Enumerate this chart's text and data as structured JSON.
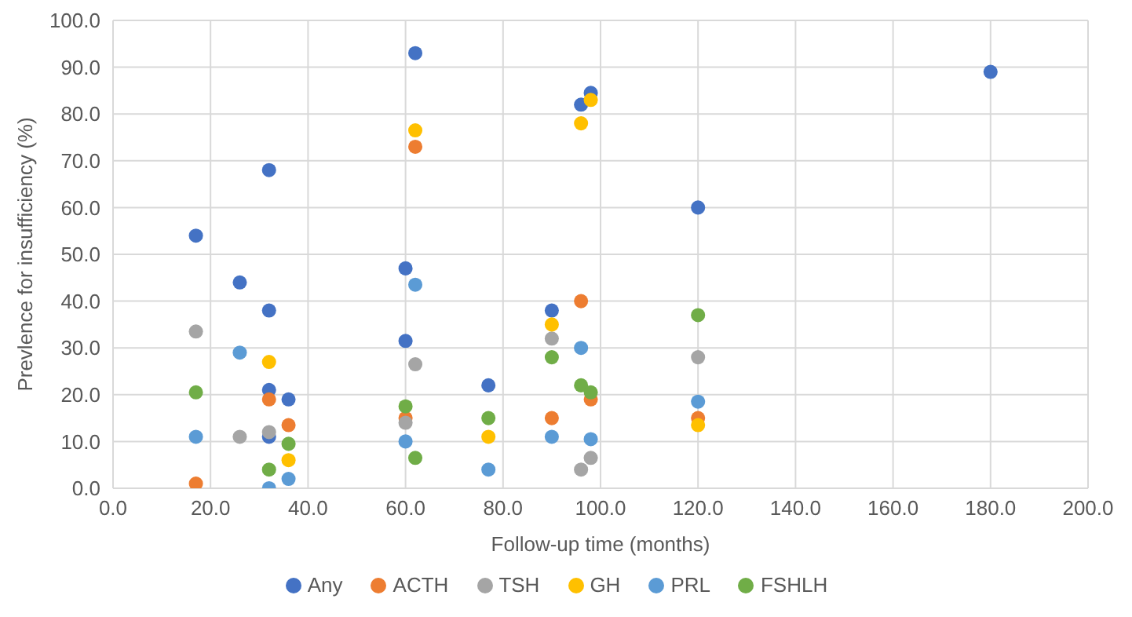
{
  "chart_data": {
    "type": "scatter",
    "xlabel": "Follow-up time (months)",
    "ylabel": "Prevlence for insufficiency (%)",
    "xlim": [
      0,
      200
    ],
    "xticks": [
      {
        "value": 0,
        "label": "0.0"
      },
      {
        "value": 20,
        "label": "20.0"
      },
      {
        "value": 40,
        "label": "40.0"
      },
      {
        "value": 60,
        "label": "60.0"
      },
      {
        "value": 80,
        "label": "80.0"
      },
      {
        "value": 100,
        "label": "100.0"
      },
      {
        "value": 120,
        "label": "120.0"
      },
      {
        "value": 140,
        "label": "140.0"
      },
      {
        "value": 160,
        "label": "160.0"
      },
      {
        "value": 180,
        "label": "180.0"
      },
      {
        "value": 200,
        "label": "200.0"
      }
    ],
    "ylim": [
      0,
      100
    ],
    "yticks": [
      {
        "value": 0,
        "label": "0.0"
      },
      {
        "value": 10,
        "label": "10.0"
      },
      {
        "value": 20,
        "label": "20.0"
      },
      {
        "value": 30,
        "label": "30.0"
      },
      {
        "value": 40,
        "label": "40.0"
      },
      {
        "value": 50,
        "label": "50.0"
      },
      {
        "value": 60,
        "label": "60.0"
      },
      {
        "value": 70,
        "label": "70.0"
      },
      {
        "value": 80,
        "label": "80.0"
      },
      {
        "value": 90,
        "label": "90.0"
      },
      {
        "value": 100,
        "label": "100.0"
      }
    ],
    "grid": true,
    "legend": "bottom",
    "marker": "circle",
    "series": [
      {
        "name": "Any",
        "color": "#4472c4",
        "x": [
          17,
          26,
          32,
          32,
          32,
          32,
          36,
          60,
          60,
          62,
          77,
          90,
          96,
          98,
          120,
          180
        ],
        "values": [
          54,
          44,
          68,
          38,
          21,
          11,
          19,
          47,
          31.5,
          93,
          22,
          38,
          82,
          84.5,
          60,
          89
        ]
      },
      {
        "name": "ACTH",
        "color": "#ed7d31",
        "x": [
          17,
          32,
          36,
          60,
          62,
          90,
          96,
          98,
          120
        ],
        "values": [
          1,
          19,
          13.5,
          15,
          73,
          15,
          40,
          19,
          15
        ]
      },
      {
        "name": "TSH",
        "color": "#a5a5a5",
        "x": [
          17,
          26,
          32,
          60,
          62,
          90,
          96,
          98,
          120
        ],
        "values": [
          33.5,
          11,
          12,
          14,
          26.5,
          32,
          4,
          6.5,
          28
        ]
      },
      {
        "name": "GH",
        "color": "#ffc000",
        "x": [
          32,
          36,
          62,
          77,
          90,
          96,
          98,
          120
        ],
        "values": [
          27,
          6,
          76.5,
          11,
          35,
          78,
          83,
          13.5
        ]
      },
      {
        "name": "PRL",
        "color": "#5b9bd5",
        "x": [
          17,
          26,
          32,
          36,
          60,
          62,
          77,
          90,
          96,
          98,
          120
        ],
        "values": [
          11,
          29,
          0,
          2,
          10,
          43.5,
          4,
          11,
          30,
          10.5,
          18.5
        ]
      },
      {
        "name": "FSHLH",
        "color": "#70ad47",
        "x": [
          17,
          32,
          36,
          60,
          62,
          77,
          90,
          96,
          98,
          120
        ],
        "values": [
          20.5,
          4,
          9.5,
          17.5,
          6.5,
          15,
          28,
          22,
          20.5,
          37
        ]
      }
    ]
  }
}
